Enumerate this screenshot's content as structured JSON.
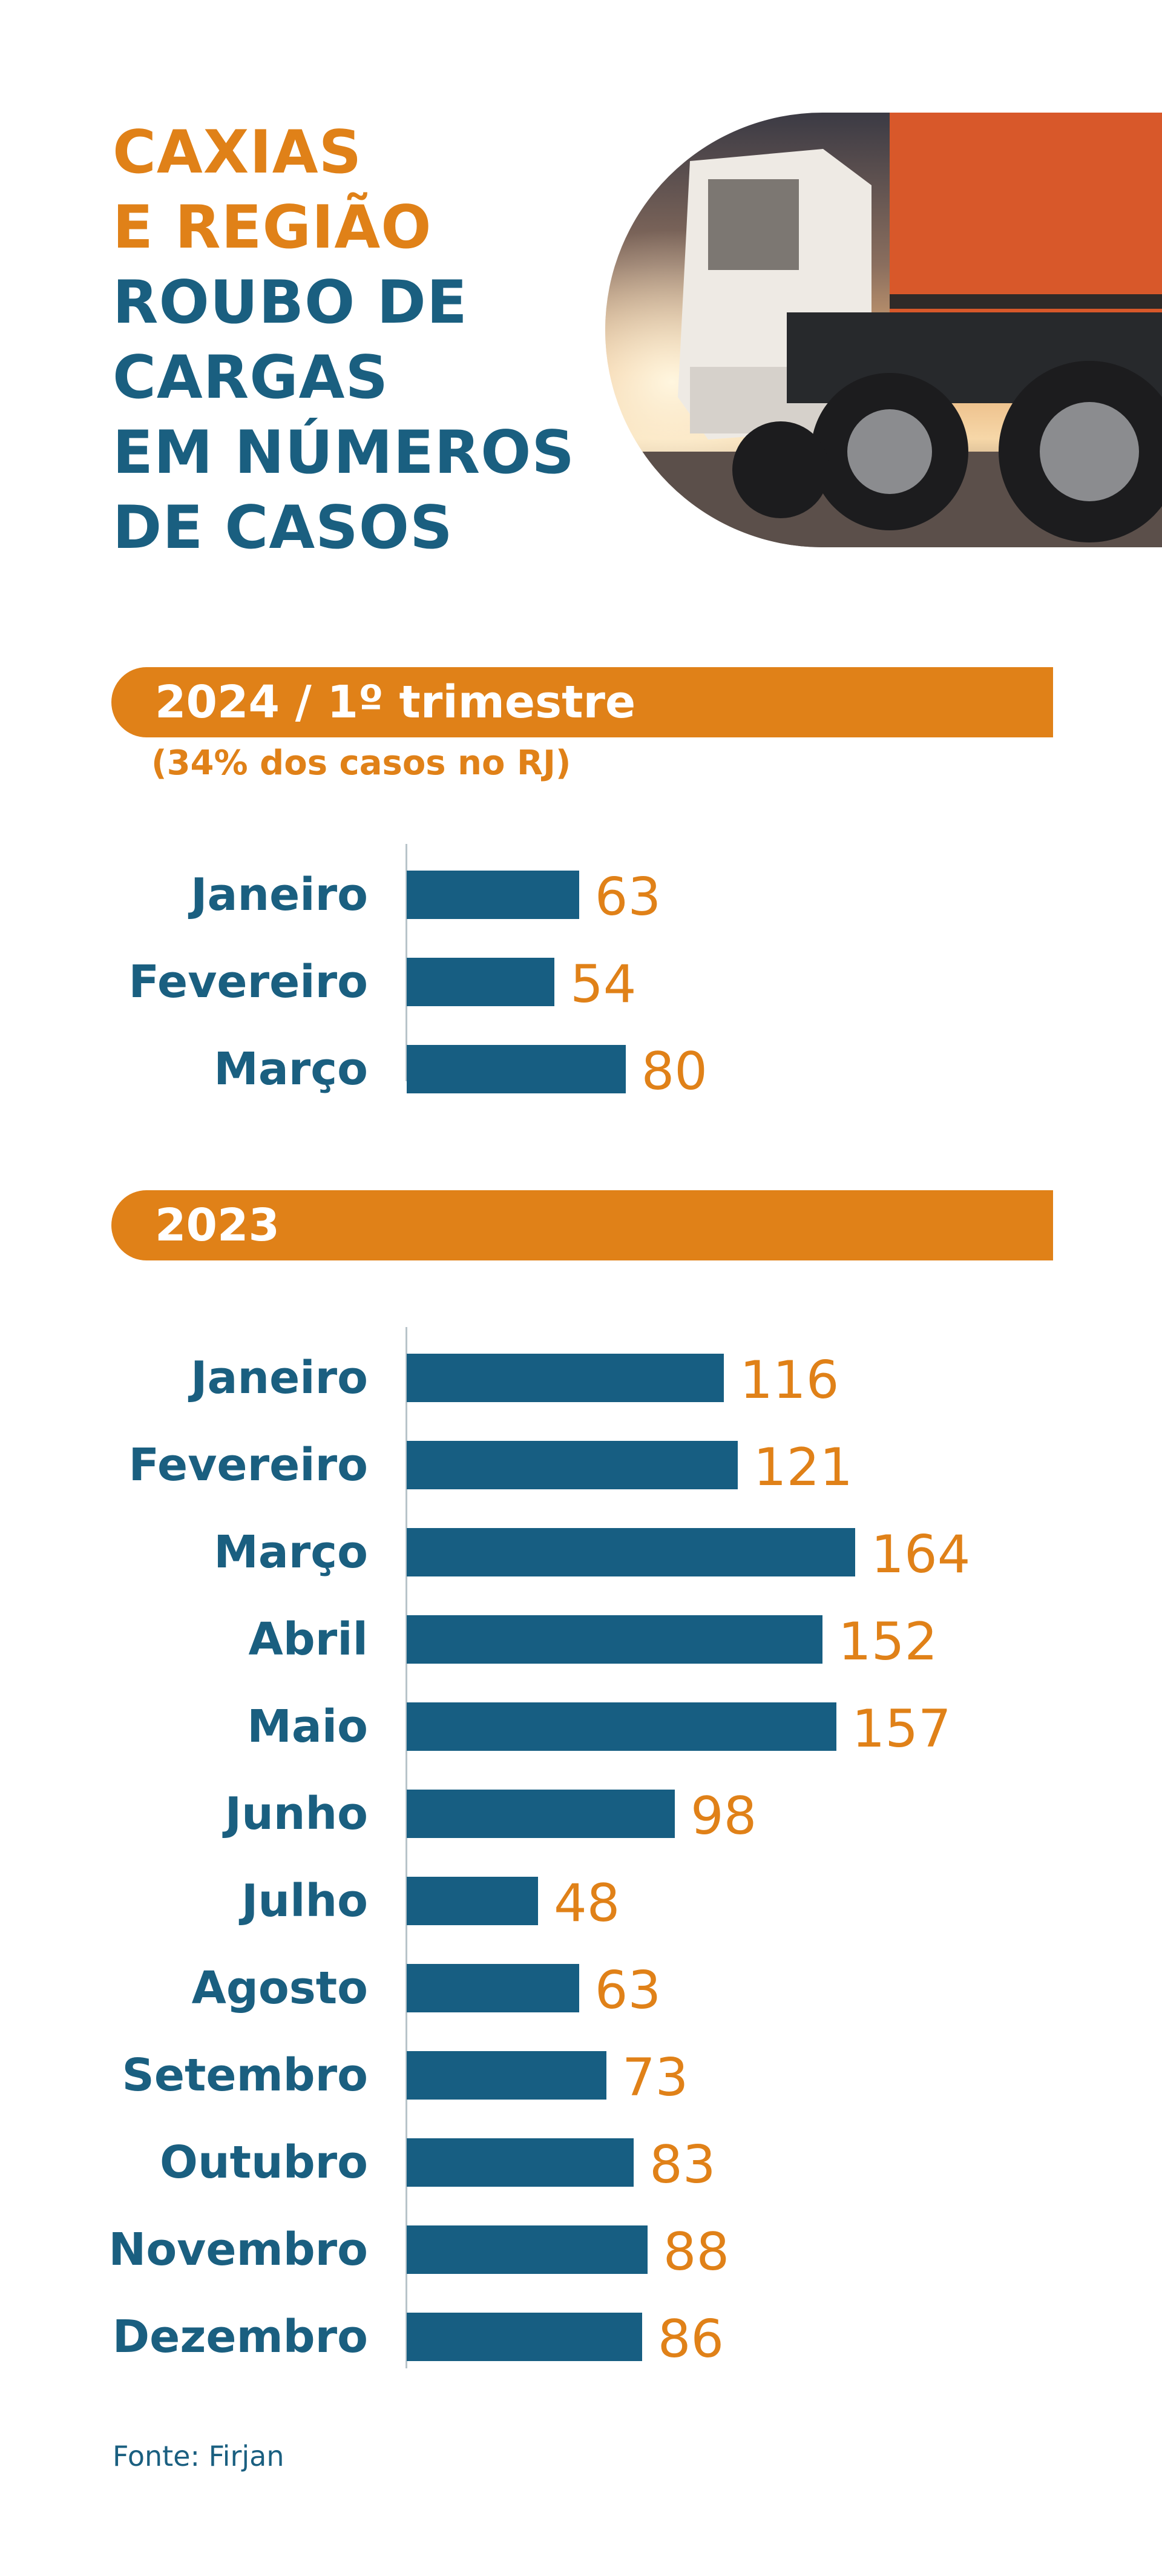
{
  "header": {
    "title_lines_orange": [
      "CAXIAS",
      "E REGIÃO"
    ],
    "title_lines_blue": [
      "ROUBO DE",
      "CARGAS",
      "EM NÚMEROS",
      "DE CASOS"
    ]
  },
  "colors": {
    "orange": "#e08118",
    "blue": "#1a5f80",
    "bar": "#175e82"
  },
  "source": "Fonte: Firjan",
  "chart_data": [
    {
      "type": "bar",
      "orientation": "horizontal",
      "title": "2024 / 1º trimestre",
      "subtitle": "(34% dos casos no RJ)",
      "categories": [
        "Janeiro",
        "Fevereiro",
        "Março"
      ],
      "values": [
        63,
        54,
        80
      ],
      "xlim": [
        0,
        180
      ]
    },
    {
      "type": "bar",
      "orientation": "horizontal",
      "title": "2023",
      "categories": [
        "Janeiro",
        "Fevereiro",
        "Março",
        "Abril",
        "Maio",
        "Junho",
        "Julho",
        "Agosto",
        "Setembro",
        "Outubro",
        "Novembro",
        "Dezembro"
      ],
      "values": [
        116,
        121,
        164,
        152,
        157,
        98,
        48,
        63,
        73,
        83,
        88,
        86
      ],
      "xlim": [
        0,
        180
      ]
    }
  ]
}
